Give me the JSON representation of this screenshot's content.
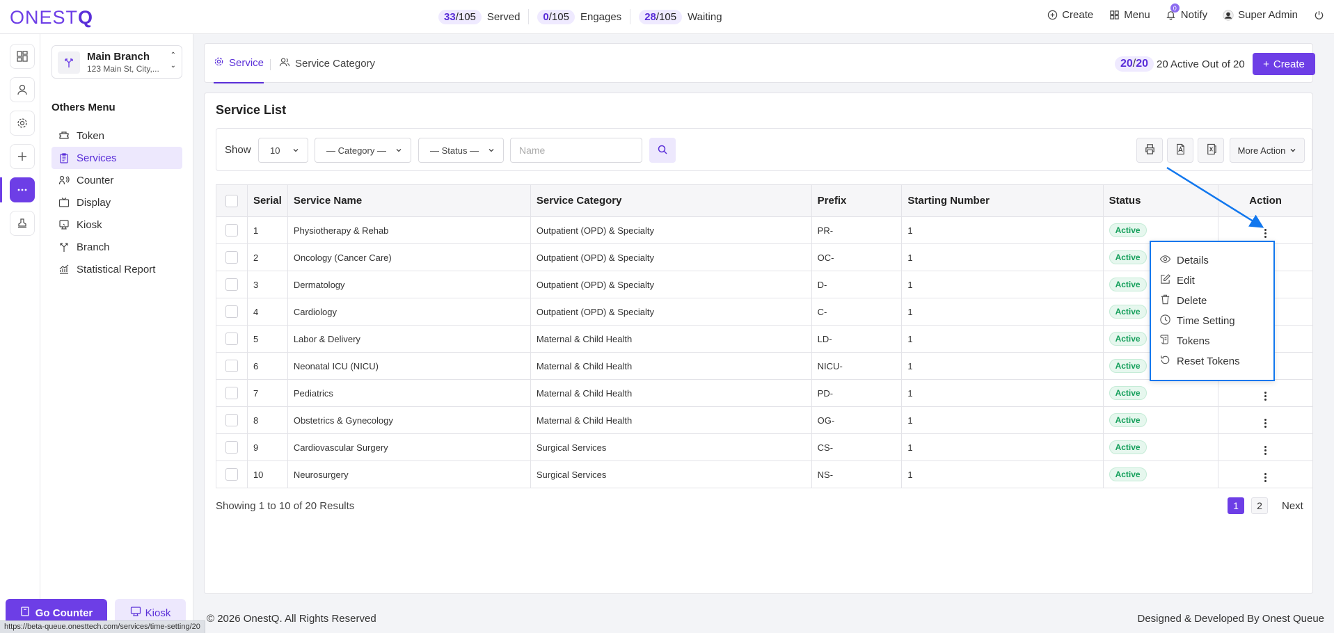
{
  "brand": {
    "logo_a": "ONEST",
    "logo_b": "Q"
  },
  "stats": [
    {
      "value": "33",
      "total": "/105",
      "label": "Served"
    },
    {
      "value": "0",
      "total": "/105",
      "label": "Engages"
    },
    {
      "value": "28",
      "total": "/105",
      "label": "Waiting"
    }
  ],
  "topnav": {
    "create": "Create",
    "menu": "Menu",
    "notify": "Notify",
    "notify_count": "0",
    "user": "Super Admin"
  },
  "branch": {
    "name": "Main Branch",
    "address": "123 Main St, City,..."
  },
  "sidebar": {
    "title": "Others Menu",
    "items": [
      {
        "label": "Token"
      },
      {
        "label": "Services"
      },
      {
        "label": "Counter"
      },
      {
        "label": "Display"
      },
      {
        "label": "Kiosk"
      },
      {
        "label": "Branch"
      },
      {
        "label": "Statistical Report"
      }
    ],
    "go_counter": "Go Counter",
    "kiosk": "Kiosk"
  },
  "tabs": [
    {
      "label": "Service"
    },
    {
      "label": "Service Category"
    }
  ],
  "summary": {
    "count_active": "20",
    "count_total": "20",
    "text": "20 Active Out of 20",
    "create": "Create"
  },
  "list": {
    "title": "Service List",
    "show_label": "Show",
    "page_size": "10",
    "category_select": "— Category —",
    "status_select": "— Status —",
    "name_placeholder": "Name",
    "more_action": "More Action"
  },
  "table": {
    "headers": [
      "Serial",
      "Service Name",
      "Service Category",
      "Prefix",
      "Starting Number",
      "Status",
      "Action"
    ],
    "rows": [
      {
        "serial": "1",
        "name": "Physiotherapy & Rehab",
        "category": "Outpatient (OPD) & Specialty",
        "prefix": "PR-",
        "start": "1",
        "status": "Active"
      },
      {
        "serial": "2",
        "name": "Oncology (Cancer Care)",
        "category": "Outpatient (OPD) & Specialty",
        "prefix": "OC-",
        "start": "1",
        "status": "Active"
      },
      {
        "serial": "3",
        "name": "Dermatology",
        "category": "Outpatient (OPD) & Specialty",
        "prefix": "D-",
        "start": "1",
        "status": "Active"
      },
      {
        "serial": "4",
        "name": "Cardiology",
        "category": "Outpatient (OPD) & Specialty",
        "prefix": "C-",
        "start": "1",
        "status": "Active"
      },
      {
        "serial": "5",
        "name": "Labor & Delivery",
        "category": "Maternal & Child Health",
        "prefix": "LD-",
        "start": "1",
        "status": "Active"
      },
      {
        "serial": "6",
        "name": "Neonatal ICU (NICU)",
        "category": "Maternal & Child Health",
        "prefix": "NICU-",
        "start": "1",
        "status": "Active"
      },
      {
        "serial": "7",
        "name": "Pediatrics",
        "category": "Maternal & Child Health",
        "prefix": "PD-",
        "start": "1",
        "status": "Active"
      },
      {
        "serial": "8",
        "name": "Obstetrics & Gynecology",
        "category": "Maternal & Child Health",
        "prefix": "OG-",
        "start": "1",
        "status": "Active"
      },
      {
        "serial": "9",
        "name": "Cardiovascular Surgery",
        "category": "Surgical Services",
        "prefix": "CS-",
        "start": "1",
        "status": "Active"
      },
      {
        "serial": "10",
        "name": "Neurosurgery",
        "category": "Surgical Services",
        "prefix": "NS-",
        "start": "1",
        "status": "Active"
      }
    ]
  },
  "pagination": {
    "showing": "Showing 1 to 10 of 20 Results",
    "page1": "1",
    "page2": "2",
    "next": "Next"
  },
  "action_menu": [
    "Details",
    "Edit",
    "Delete",
    "Time Setting",
    "Tokens",
    "Reset Tokens"
  ],
  "footer": {
    "copyright": "© 2026 OnestQ. All Rights Reserved",
    "credit": "Designed & Developed By Onest Queue"
  },
  "statusbar": {
    "url": "https://beta-queue.onesttech.com/services/time-setting/20"
  },
  "colors": {
    "accent": "#6d3ee6",
    "success": "#16a05c",
    "highlight": "#1177ee"
  }
}
